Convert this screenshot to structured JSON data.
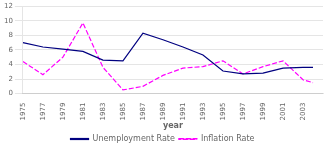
{
  "chart_data": {
    "type": "line",
    "x": [
      1975,
      1977,
      1979,
      1981,
      1983,
      1985,
      1987,
      1989,
      1991,
      1993,
      1995,
      1997,
      1999,
      2001,
      2003,
      2004
    ],
    "series": [
      {
        "name": "Unemployment Rate",
        "color": "#000080",
        "line_style": "solid",
        "values": [
          7.0,
          6.4,
          6.1,
          5.8,
          4.6,
          4.5,
          8.3,
          7.4,
          6.4,
          5.3,
          3.1,
          2.7,
          2.8,
          3.5,
          3.6,
          3.6
        ]
      },
      {
        "name": "Inflation Rate",
        "color": "#FF00FF",
        "line_style": "dashed",
        "values": [
          4.4,
          2.6,
          5.0,
          9.7,
          3.6,
          0.5,
          1.0,
          2.5,
          3.5,
          3.7,
          4.5,
          2.7,
          3.7,
          4.5,
          1.9,
          1.5
        ]
      }
    ],
    "x_label": "year",
    "xlim": [
      1975,
      2005
    ],
    "xticks": [
      1975,
      1977,
      1979,
      1981,
      1983,
      1985,
      1987,
      1989,
      1991,
      1993,
      1995,
      1997,
      1999,
      2001,
      2003
    ],
    "ylim": [
      0,
      12
    ],
    "yticks": [
      0,
      2,
      4,
      6,
      8,
      10,
      12
    ],
    "grid": true,
    "legend": "bottom"
  }
}
